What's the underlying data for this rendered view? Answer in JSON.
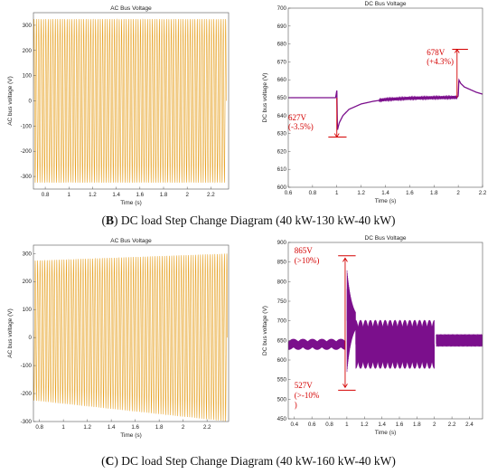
{
  "captions": [
    {
      "letter": "B",
      "text": " DC load Step Change Diagram (40 kW-130 kW-40 kW)"
    },
    {
      "letter": "C",
      "text": " DC load Step Change Diagram (40 kW-160 kW-40 kW)"
    }
  ],
  "colors": {
    "ac_wave": "#e6a020",
    "ac_light": "#fff3c4",
    "dc_line": "#7b0f8c",
    "annotation": "#d40000",
    "axis": "#555555"
  },
  "chart_data": [
    {
      "id": "B-AC",
      "type": "line",
      "title": "AC Bus Voltage",
      "xlabel": "Time (s)",
      "ylabel": "AC bus voltage (V)",
      "xlim": [
        0.7,
        2.35
      ],
      "ylim": [
        -350,
        350
      ],
      "xticks": [
        0.8,
        1,
        1.2,
        1.4,
        1.6,
        1.8,
        2,
        2.2
      ],
      "xtick_labels": [
        "0.8",
        "1",
        "1.2",
        "1.4",
        "1.6",
        "1.8",
        "2",
        "2.2"
      ],
      "yticks": [
        -300,
        -200,
        -100,
        0,
        100,
        200,
        300
      ],
      "ytick_labels": [
        "-300",
        "-200",
        "-100",
        "0",
        "100",
        "200",
        "300"
      ],
      "series": [
        {
          "kind": "ac",
          "freq_hz": 50,
          "amp_start": 325,
          "amp_end": 325,
          "t_start": 0.7,
          "t_end": 2.33
        }
      ]
    },
    {
      "id": "B-DC",
      "type": "line",
      "title": "DC Bus Voltage",
      "xlabel": "Time (s)",
      "ylabel": "DC bus voltage (V)",
      "xlim": [
        0.6,
        2.2
      ],
      "ylim": [
        600,
        700
      ],
      "xticks": [
        0.6,
        0.8,
        1,
        1.2,
        1.4,
        1.6,
        1.8,
        2,
        2.2
      ],
      "xtick_labels": [
        "0.6",
        "0.8",
        "1",
        "1.2",
        "1.4",
        "1.6",
        "1.8",
        "2",
        "2.2"
      ],
      "yticks": [
        600,
        610,
        620,
        630,
        640,
        650,
        660,
        670,
        680,
        690,
        700
      ],
      "ytick_labels": [
        "600",
        "610",
        "620",
        "630",
        "640",
        "650",
        "660",
        "670",
        "680",
        "690",
        "700"
      ],
      "series": [
        {
          "kind": "dc",
          "points": [
            [
              0.6,
              650
            ],
            [
              0.99,
              650
            ],
            [
              0.995,
              652
            ],
            [
              1.0,
              654
            ],
            [
              1.005,
              632
            ],
            [
              1.02,
              636
            ],
            [
              1.05,
              640
            ],
            [
              1.1,
              643.5
            ],
            [
              1.2,
              646.5
            ],
            [
              1.3,
              648
            ],
            [
              1.4,
              649
            ],
            [
              1.6,
              649.7
            ],
            [
              1.8,
              650
            ],
            [
              1.99,
              650.2
            ],
            [
              2.0,
              651
            ],
            [
              2.005,
              660
            ],
            [
              2.02,
              658
            ],
            [
              2.05,
              656
            ],
            [
              2.1,
              654.5
            ],
            [
              2.15,
              653
            ],
            [
              2.2,
              652
            ]
          ],
          "ripple": 0.6
        }
      ],
      "annotations": [
        {
          "text": "627V",
          "text2": "(-3.5%)",
          "arrow_x": 1.0,
          "arrow_from": 650,
          "arrow_to": 628,
          "hline_y": 628,
          "hline_x": [
            0.93,
            1.08
          ],
          "label_x": 0.6,
          "label_y": 637.5,
          "label2_y": 632.3
        },
        {
          "text": "678V",
          "text2": "(+4.3%)",
          "arrow_x": 1.99,
          "arrow_from": 650,
          "arrow_to": 677,
          "hline_y": 677,
          "hline_x": [
            1.95,
            2.08
          ],
          "label_x": 1.74,
          "label_y": 673.8,
          "label2_y": 668.6
        }
      ]
    },
    {
      "id": "C-AC",
      "type": "line",
      "title": "AC Bus Voltage",
      "xlabel": "Time (s)",
      "ylabel": "AC bus voltage (V)",
      "xlim": [
        0.75,
        2.38
      ],
      "ylim": [
        -300,
        330
      ],
      "xticks": [
        0.8,
        1,
        1.2,
        1.4,
        1.6,
        1.8,
        2,
        2.2
      ],
      "xtick_labels": [
        "0.8",
        "1",
        "1.2",
        "1.4",
        "1.6",
        "1.8",
        "2",
        "2.2"
      ],
      "yticks": [
        -300,
        -200,
        -100,
        0,
        100,
        200,
        300
      ],
      "ytick_labels": [
        "-300",
        "-200",
        "-100",
        "0",
        "100",
        "200",
        "300"
      ],
      "series": [
        {
          "kind": "ac",
          "freq_hz": 50,
          "amp_start": 250,
          "amp_end": 300,
          "offset_start": 25,
          "offset_end": 0,
          "t_start": 0.75,
          "t_end": 2.37
        }
      ]
    },
    {
      "id": "C-DC",
      "type": "line",
      "title": "DC Bus Voltage",
      "xlabel": "Time (s)",
      "ylabel": "DC bus voltage (V)",
      "xlim": [
        0.33,
        2.55
      ],
      "ylim": [
        450,
        900
      ],
      "xticks": [
        0.4,
        0.6,
        0.8,
        1,
        1.2,
        1.4,
        1.6,
        1.8,
        2,
        2.2,
        2.4
      ],
      "xtick_labels": [
        "0.4",
        "0.6",
        "0.8",
        "1",
        "1.2",
        "1.4",
        "1.6",
        "1.8",
        "2",
        "2.2",
        "2.4"
      ],
      "yticks": [
        450,
        500,
        550,
        600,
        650,
        700,
        750,
        800,
        850,
        900
      ],
      "ytick_labels": [
        "450",
        "500",
        "550",
        "600",
        "650",
        "700",
        "750",
        "800",
        "850",
        "900"
      ],
      "series": [
        {
          "kind": "dc_osc",
          "segments": [
            {
              "t0": 0.33,
              "t1": 0.98,
              "center": 640,
              "amp": 14,
              "freq": 60
            },
            {
              "t0": 1.0,
              "t1": 1.1,
              "center": 700,
              "amp": 140,
              "freq": 80,
              "decay": true
            },
            {
              "t0": 1.1,
              "t1": 2.0,
              "center": 640,
              "amp": 62,
              "freq": 45
            },
            {
              "t0": 2.02,
              "t1": 2.55,
              "center": 650,
              "amp": 16,
              "freq": 70
            }
          ]
        }
      ],
      "annotations": [
        {
          "text": "865V",
          "text2": "(>10%)",
          "arrow_x": 0.98,
          "arrow_from": 650,
          "arrow_to": 860,
          "hline_y": 866,
          "hline_x": [
            0.9,
            1.1
          ],
          "label_x": 0.4,
          "label_y": 872,
          "label2_y": 847
        },
        {
          "text": "527V",
          "text2": "(>-10%",
          "text3": ")",
          "arrow_x": 0.98,
          "arrow_from": 650,
          "arrow_to": 530,
          "hline_y": 523,
          "hline_x": [
            0.9,
            1.1
          ],
          "label_x": 0.4,
          "label_y": 528,
          "label2_y": 503,
          "label3_y": 479
        }
      ]
    }
  ]
}
